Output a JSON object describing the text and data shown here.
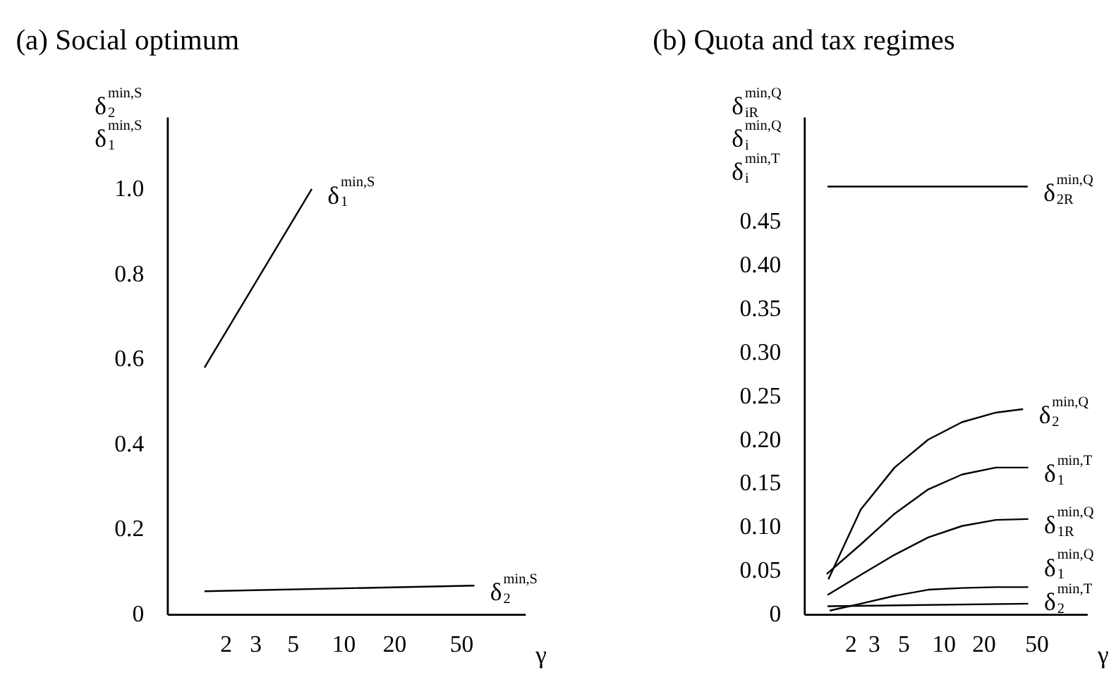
{
  "chart_data": [
    {
      "type": "line",
      "title": "(a) Social optimum",
      "xlabel": "γ",
      "ylabel": "δ$^{min,S}$$_{2}$ δ$^{min,S}$$_{1}$",
      "log": "x",
      "grid": false,
      "xlim": [
        0.9,
        120
      ],
      "xticks": [
        2,
        3,
        5,
        10,
        20,
        50
      ],
      "ylim": [
        0,
        1.17
      ],
      "yticks": [
        {
          "value": 0,
          "label": "0"
        },
        {
          "value": 0.2,
          "label": "0.2"
        },
        {
          "value": 0.4,
          "label": "0.4"
        },
        {
          "value": 0.6,
          "label": "0.6"
        },
        {
          "value": 0.8,
          "label": "0.8"
        },
        {
          "value": 1.0,
          "label": "1.0"
        }
      ],
      "series": [
        {
          "name": "δ$^{min,S}$$_{1}$",
          "color": "#000000",
          "x": [
            1.5,
            6.5
          ],
          "values": [
            0.58,
            1.0
          ]
        },
        {
          "name": "δ$^{min,S}$$_{2}$",
          "color": "#000000",
          "x": [
            1.5,
            60
          ],
          "values": [
            0.054,
            0.067
          ]
        }
      ]
    },
    {
      "type": "line",
      "title": "(b) Quota and tax regimes",
      "xlabel": "γ",
      "ylabel": "δ$^{min,Q}$$_{iR}$ δ$^{min,Q}$$_{i}$ δ$^{min,T}$$_{i}$",
      "log": "x",
      "grid": false,
      "xlim": [
        0.9,
        120
      ],
      "xticks": [
        2,
        3,
        5,
        10,
        20,
        50
      ],
      "ylim": [
        0,
        0.57
      ],
      "yticks": [
        {
          "value": 0,
          "label": "0"
        },
        {
          "value": 0.05,
          "label": "0.05"
        },
        {
          "value": 0.1,
          "label": "0.10"
        },
        {
          "value": 0.15,
          "label": "0.15"
        },
        {
          "value": 0.2,
          "label": "0.20"
        },
        {
          "value": 0.25,
          "label": "0.25"
        },
        {
          "value": 0.3,
          "label": "0.30"
        },
        {
          "value": 0.35,
          "label": "0.35"
        },
        {
          "value": 0.4,
          "label": "0.40"
        },
        {
          "value": 0.45,
          "label": "0.45"
        }
      ],
      "series": [
        {
          "name": "δ$^{min,Q}$$_{2R}$",
          "color": "#000000",
          "x": [
            1.35,
            43
          ],
          "values": [
            0.49,
            0.49
          ]
        },
        {
          "name": "δ$^{min,Q}$$_{2}$",
          "color": "#000000",
          "x": [
            1.37,
            2.4,
            4.3,
            7.7,
            13.8,
            24.8,
            39.7
          ],
          "values": [
            0.04,
            0.12,
            0.168,
            0.2,
            0.22,
            0.231,
            0.235
          ]
        },
        {
          "name": "δ$^{min,T}$$_{1}$",
          "color": "#000000",
          "x": [
            1.33,
            2.4,
            4.3,
            7.7,
            13.8,
            24.8,
            43.4
          ],
          "values": [
            0.046,
            0.08,
            0.115,
            0.143,
            0.16,
            0.168,
            0.168
          ]
        },
        {
          "name": "δ$^{min,Q}$$_{1R}$",
          "color": "#000000",
          "x": [
            1.35,
            2.4,
            4.3,
            7.7,
            13.8,
            24.8,
            43.4
          ],
          "values": [
            0.022,
            0.045,
            0.068,
            0.088,
            0.101,
            0.108,
            0.109
          ]
        },
        {
          "name": "δ$^{min,Q}$$_{1}$",
          "color": "#000000",
          "x": [
            1.4,
            2.4,
            4.3,
            7.7,
            13.8,
            24.8,
            43.4
          ],
          "values": [
            0.004,
            0.012,
            0.021,
            0.028,
            0.03,
            0.031,
            0.031
          ]
        },
        {
          "name": "δ$^{min,T}$$_{2}$",
          "color": "#000000",
          "x": [
            1.35,
            43.4
          ],
          "values": [
            0.009,
            0.012
          ]
        }
      ]
    }
  ]
}
